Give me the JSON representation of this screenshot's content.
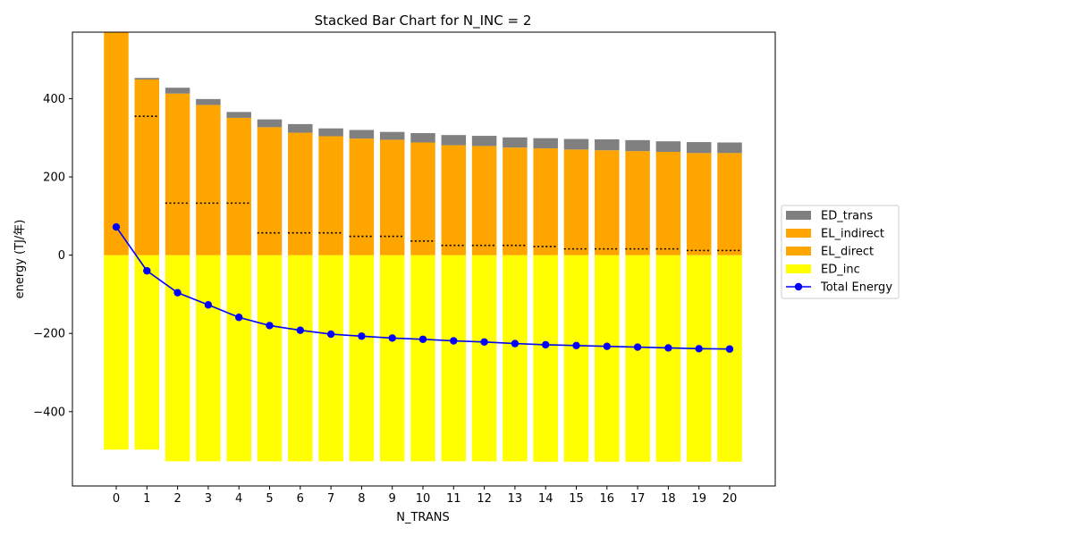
{
  "chart_data": {
    "type": "bar",
    "stacked": true,
    "title": "Stacked Bar Chart for N_INC = 2",
    "xlabel": "N_TRANS",
    "ylabel": "energy (TJ/年)",
    "categories": [
      "0",
      "1",
      "2",
      "3",
      "4",
      "5",
      "6",
      "7",
      "8",
      "9",
      "10",
      "11",
      "12",
      "13",
      "14",
      "15",
      "16",
      "17",
      "18",
      "19",
      "20"
    ],
    "ylim": [
      -590,
      570
    ],
    "yticks": [
      -400,
      -200,
      0,
      200,
      400
    ],
    "yticks_labels": [
      "−400",
      "−200",
      "0",
      "200",
      "400"
    ],
    "legend_position": "right",
    "series": [
      {
        "name": "ED_inc",
        "color": "#ffff00",
        "values": [
          -497,
          -497,
          -527,
          -527,
          -527,
          -527,
          -527,
          -527,
          -527,
          -527,
          -527,
          -527,
          -527,
          -527,
          -528,
          -528,
          -528,
          -528,
          -528,
          -528,
          -528
        ]
      },
      {
        "name": "EL_direct",
        "color": "#ffa500",
        "values": [
          0,
          355,
          133,
          133,
          133,
          57,
          57,
          57,
          48,
          48,
          36,
          25,
          25,
          25,
          22,
          16,
          16,
          16,
          16,
          12,
          12
        ]
      },
      {
        "name": "EL_indirect",
        "color": "#ffa500",
        "values": [
          600,
          94,
          280,
          251,
          218,
          270,
          256,
          247,
          250,
          247,
          252,
          256,
          254,
          250,
          251,
          254,
          252,
          250,
          248,
          249,
          249
        ]
      },
      {
        "name": "ED_trans",
        "color": "#808080",
        "values": [
          0,
          4,
          15,
          15,
          15,
          20,
          22,
          20,
          22,
          20,
          24,
          26,
          26,
          26,
          26,
          27,
          28,
          28,
          27,
          28,
          27
        ]
      }
    ],
    "line_series": {
      "name": "Total Energy",
      "color": "#0000ff",
      "values": [
        72,
        -40,
        -96,
        -127,
        -159,
        -180,
        -192,
        -202,
        -207,
        -212,
        -215,
        -219,
        -222,
        -226,
        -229,
        -231,
        -233,
        -235,
        -237,
        -239,
        -240
      ]
    }
  }
}
